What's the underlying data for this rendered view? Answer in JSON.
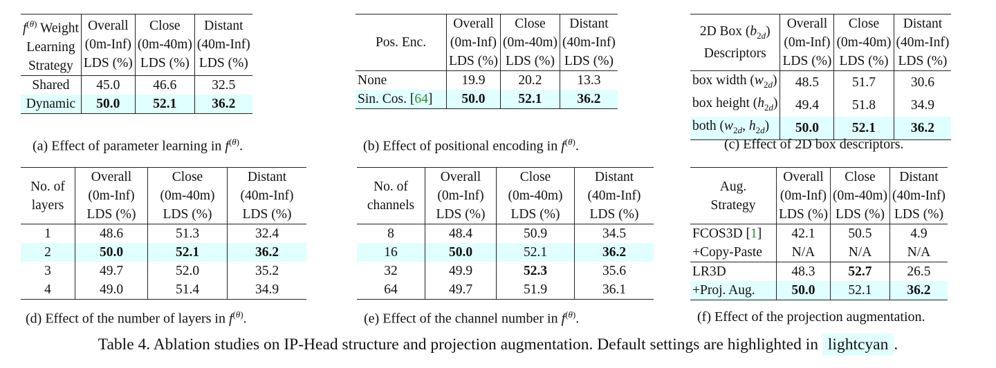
{
  "tables": {
    "a": {
      "header": [
        "f(θ) Weight Learning Strategy",
        "Overall (0m-Inf) LDS (%)",
        "Close (0m-40m) LDS (%)",
        "Distant (40m-Inf) LDS (%)"
      ],
      "rows": [
        {
          "label": "Shared",
          "values": [
            "45.0",
            "46.6",
            "32.5"
          ]
        },
        {
          "label": "Dynamic",
          "values": [
            "50.0",
            "52.1",
            "36.2"
          ],
          "highlight": true
        }
      ],
      "caption": "(a) Effect of parameter learning in f(θ)."
    },
    "b": {
      "header": [
        "Pos. Enc.",
        "Overall (0m-Inf) LDS (%)",
        "Close (0m-40m) LDS (%)",
        "Distant (40m-Inf) LDS (%)"
      ],
      "rows": [
        {
          "label": "None",
          "values": [
            "19.9",
            "20.2",
            "13.3"
          ]
        },
        {
          "label": "Sin. Cos. [64]",
          "values": [
            "50.0",
            "52.1",
            "36.2"
          ],
          "highlight": true
        }
      ],
      "caption": "(b) Effect of positional encoding in f(θ)."
    },
    "c": {
      "header": [
        "2D Box (b2d) Descriptors",
        "Overall (0m-Inf) LDS (%)",
        "Close (0m-40m) LDS (%)",
        "Distant (40m-Inf) LDS (%)"
      ],
      "rows": [
        {
          "label": "box width (w2d)",
          "values": [
            "48.5",
            "51.7",
            "30.6"
          ]
        },
        {
          "label": "box height (h2d)",
          "values": [
            "49.4",
            "51.8",
            "34.9"
          ]
        },
        {
          "label": "both (w2d, h2d)",
          "values": [
            "50.0",
            "52.1",
            "36.2"
          ],
          "highlight": true
        }
      ],
      "caption": "(c) Effect of 2D box descriptors."
    },
    "d": {
      "header": [
        "No. of layers",
        "Overall (0m-Inf) LDS (%)",
        "Close (0m-40m) LDS (%)",
        "Distant (40m-Inf) LDS (%)"
      ],
      "rows": [
        {
          "label": "1",
          "values": [
            "48.6",
            "51.3",
            "32.4"
          ]
        },
        {
          "label": "2",
          "values": [
            "50.0",
            "52.1",
            "36.2"
          ],
          "highlight": true
        },
        {
          "label": "3",
          "values": [
            "49.7",
            "52.0",
            "35.2"
          ]
        },
        {
          "label": "4",
          "values": [
            "49.0",
            "51.4",
            "34.9"
          ]
        }
      ],
      "caption": "(d) Effect of the number of layers in f(θ)."
    },
    "e": {
      "header": [
        "No. of channels",
        "Overall (0m-Inf) LDS (%)",
        "Close (0m-40m) LDS (%)",
        "Distant (40m-Inf) LDS (%)"
      ],
      "rows": [
        {
          "label": "8",
          "values": [
            "48.4",
            "50.9",
            "34.5"
          ]
        },
        {
          "label": "16",
          "values": [
            "50.0",
            "52.1",
            "36.2"
          ],
          "highlight": true
        },
        {
          "label": "32",
          "values": [
            "49.9",
            "52.3",
            "35.6"
          ]
        },
        {
          "label": "64",
          "values": [
            "49.7",
            "51.9",
            "36.1"
          ]
        }
      ],
      "caption": "(e) Effect of the channel number in f(θ)."
    },
    "f": {
      "header": [
        "Aug. Strategy",
        "Overall (0m-Inf) LDS (%)",
        "Close (0m-40m) LDS (%)",
        "Distant (40m-Inf) LDS (%)"
      ],
      "rows": [
        {
          "label": "FCOS3D [1]",
          "values": [
            "42.1",
            "50.5",
            "4.9"
          ]
        },
        {
          "label": "+Copy-Paste",
          "values": [
            "N/A",
            "N/A",
            "N/A"
          ]
        },
        {
          "label": "LR3D",
          "values": [
            "48.3",
            "52.7",
            "26.5"
          ]
        },
        {
          "label": "+Proj. Aug.",
          "values": [
            "50.0",
            "52.1",
            "36.2"
          ],
          "highlight": true
        }
      ],
      "caption": "(f) Effect of the projection augmentation."
    }
  },
  "main_caption": {
    "text": "Table 4. Ablation studies on IP-Head structure and projection augmentation. Default settings are highlighted in",
    "highlight_word": "lightcyan",
    "end": "."
  },
  "colors": {
    "highlight": "#e0ffff",
    "citation": "#2e8b2e"
  }
}
